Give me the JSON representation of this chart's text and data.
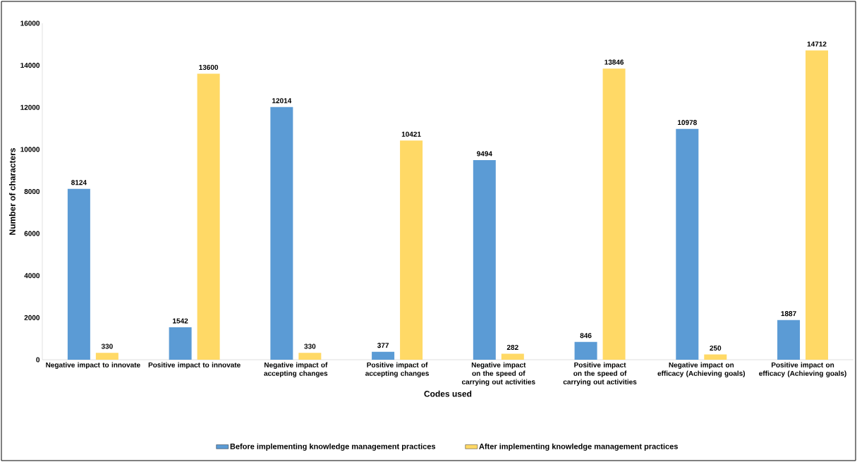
{
  "chart_data": {
    "type": "bar",
    "xlabel": "Codes used",
    "ylabel": "Number of characters",
    "categories": [
      "Negative impact to innovate",
      "Positive impact to innovate",
      "Negative impact of accepting changes",
      "Positive impact of accepting changes",
      "Negative impact on the speed of carrying out activities",
      "Positive impact on the speed of carrying out activities",
      "Negative impact on efficacy (Achieving goals)",
      "Positive impact on efficacy (Achieving goals)"
    ],
    "series": [
      {
        "name": "Before implementing knowledge management practices",
        "color": "#5b9bd5",
        "values": [
          8124,
          1542,
          12014,
          377,
          9494,
          846,
          10978,
          1887
        ]
      },
      {
        "name": "After implementing knowledge management practices",
        "color": "#ffd966",
        "values": [
          330,
          13600,
          330,
          10421,
          282,
          13846,
          250,
          14712
        ]
      }
    ],
    "ylim": [
      0,
      16000
    ],
    "yticks": [
      0,
      2000,
      4000,
      6000,
      8000,
      10000,
      12000,
      14000,
      16000
    ],
    "data_labels": true,
    "legend": "bottom"
  }
}
